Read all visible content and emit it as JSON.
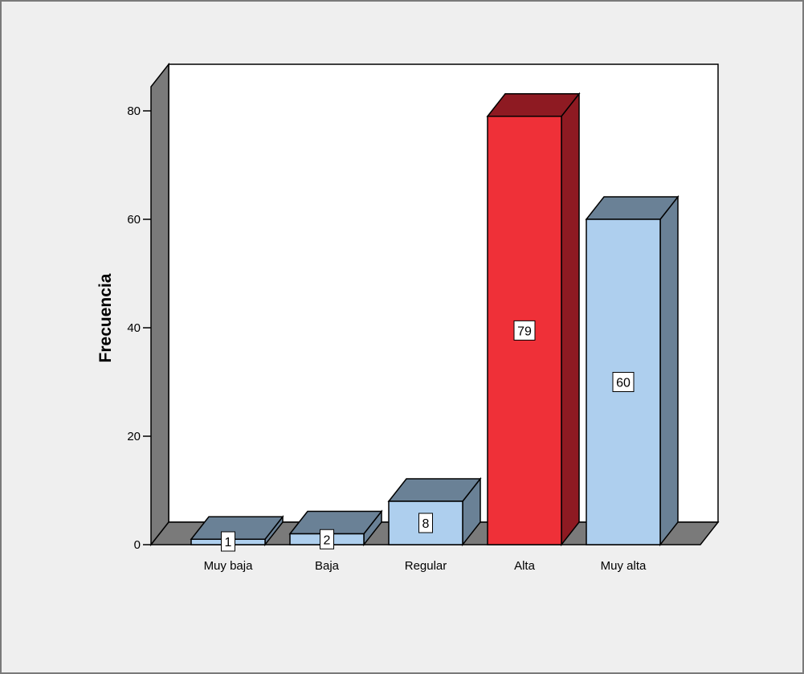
{
  "chart_data": {
    "type": "bar",
    "categories": [
      "Muy baja",
      "Baja",
      "Regular",
      "Alta",
      "Muy alta"
    ],
    "values": [
      1,
      2,
      8,
      79,
      60
    ],
    "data_labels": [
      "1",
      "2",
      "8",
      "79",
      "60"
    ],
    "highlight_index": 3,
    "ylabel": "Frecuencia",
    "xlabel": "",
    "ylim": [
      0,
      80
    ],
    "yticks": [
      0,
      20,
      40,
      60,
      80
    ],
    "grid": false,
    "three_d": true,
    "colors": {
      "bar_front": "#aecfee",
      "bar_side": "#6a8196",
      "bar_top": "#6a8196",
      "highlight_front": "#ef3038",
      "highlight_side": "#8e1a22",
      "highlight_top": "#8e1a22",
      "back_wall": "#ffffff",
      "side_wall": "#7a7a7a",
      "floor": "#7a7a7a",
      "background": "#efefef"
    }
  }
}
